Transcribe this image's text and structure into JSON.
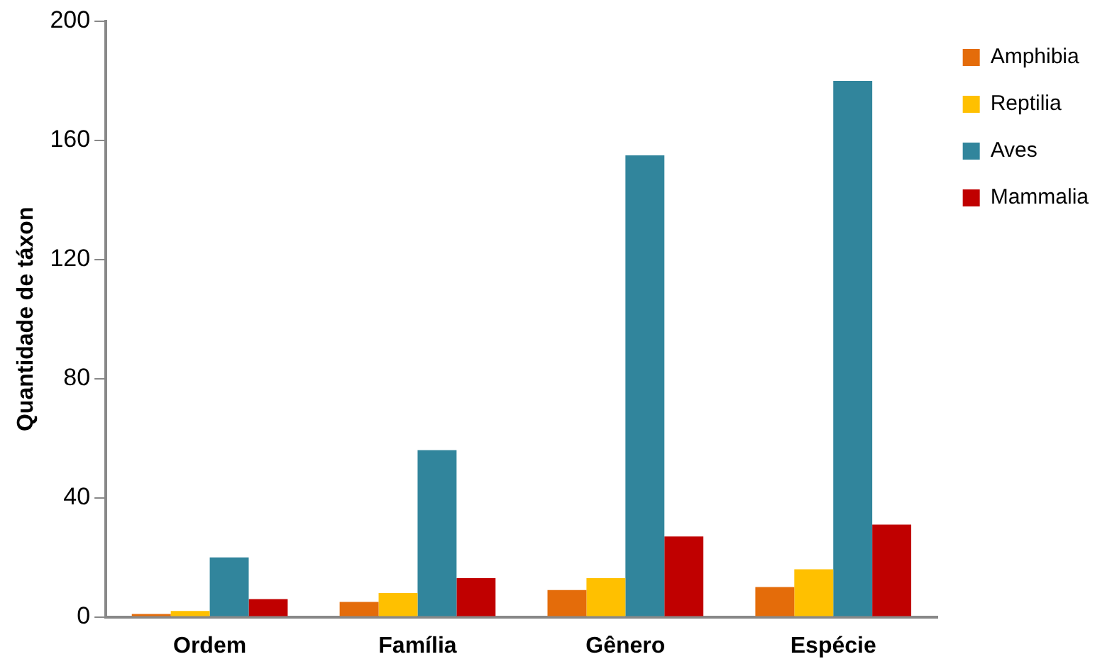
{
  "chart_data": {
    "type": "bar",
    "ylabel": "Quantidade de táxon",
    "categories": [
      "Ordem",
      "Família",
      "Gênero",
      "Espécie"
    ],
    "series": [
      {
        "name": "Amphibia",
        "color": "#e46c0a",
        "values": [
          1,
          5,
          9,
          10
        ]
      },
      {
        "name": "Reptilia",
        "color": "#ffc000",
        "values": [
          2,
          8,
          13,
          16
        ]
      },
      {
        "name": "Aves",
        "color": "#31859c",
        "values": [
          20,
          56,
          155,
          180
        ]
      },
      {
        "name": "Mammalia",
        "color": "#c00000",
        "values": [
          6,
          13,
          27,
          31
        ]
      }
    ],
    "ylim": [
      0,
      200
    ],
    "yticks": [
      0,
      40,
      80,
      120,
      160,
      200
    ],
    "grid": false,
    "legend": "right"
  }
}
